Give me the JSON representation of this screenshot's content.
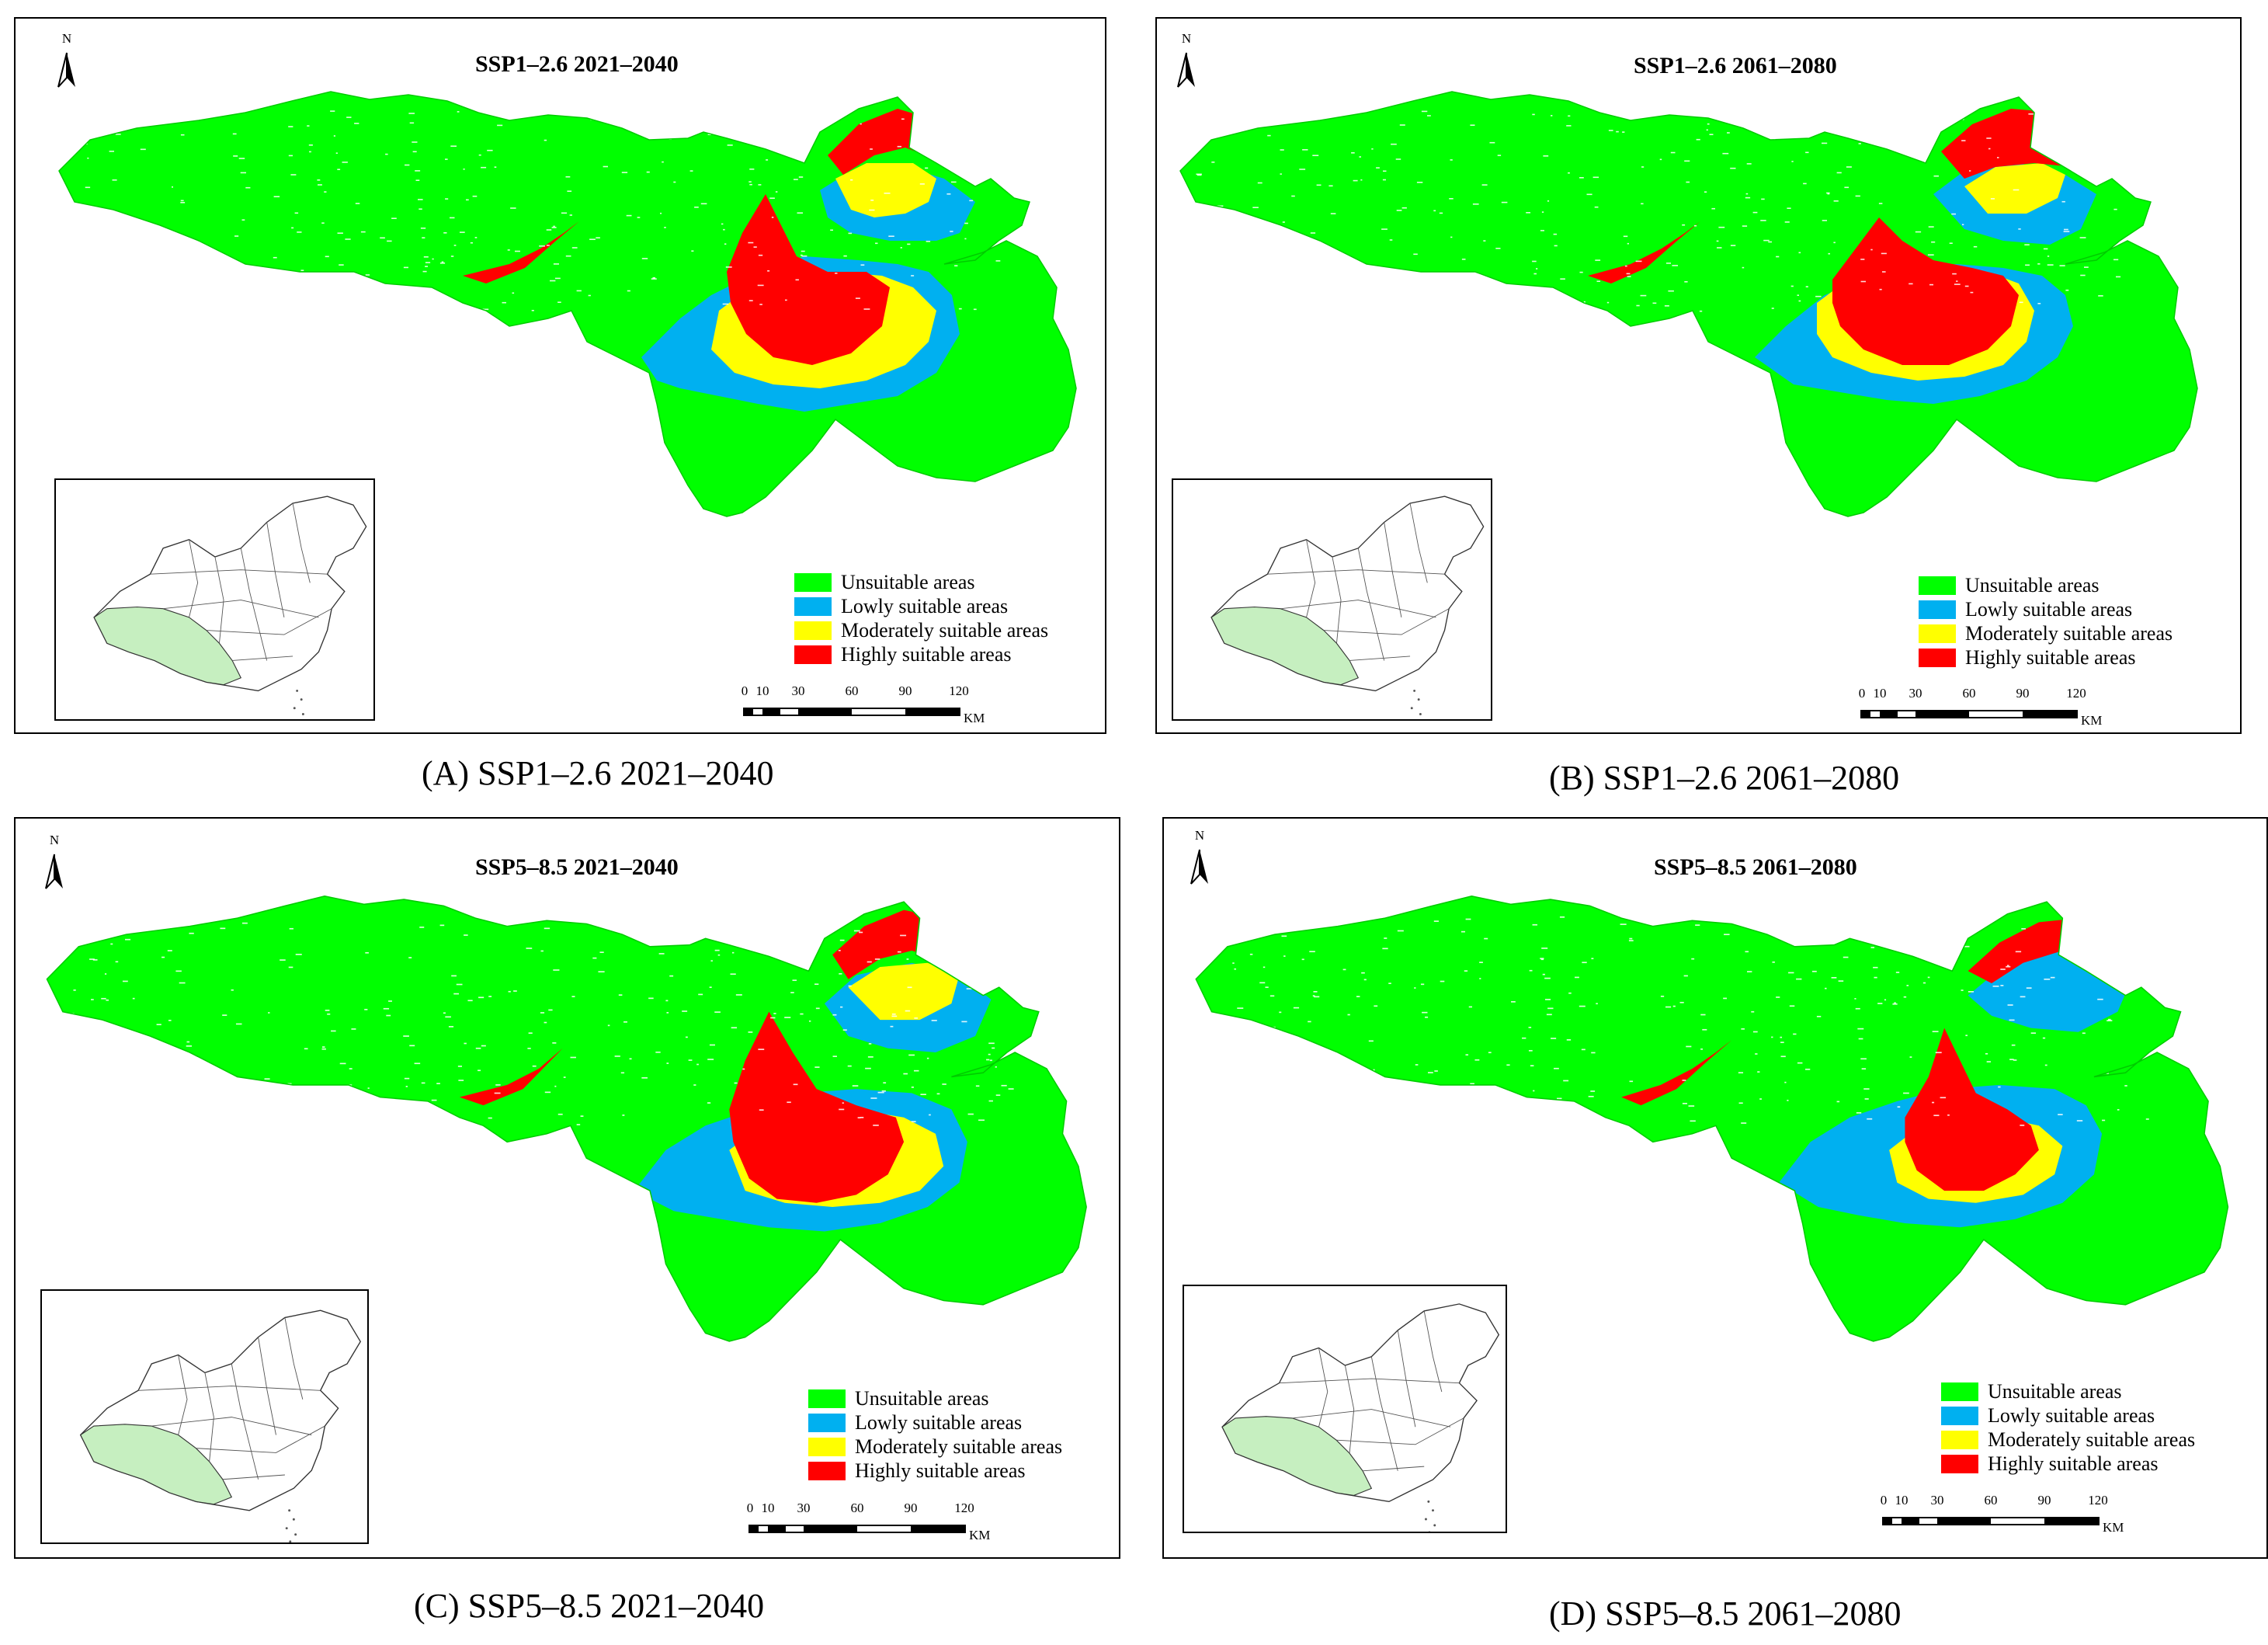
{
  "panels": [
    {
      "title": "SSP1–2.6 2021–2040",
      "caption": "(A) SSP1–2.6 2021–2040",
      "variant": "a"
    },
    {
      "title": "SSP1–2.6 2061–2080",
      "caption": "(B) SSP1–2.6 2061–2080",
      "variant": "b"
    },
    {
      "title": "SSP5–8.5 2021–2040",
      "caption": "(C) SSP5–8.5 2021–2040",
      "variant": "c"
    },
    {
      "title": "SSP5–8.5 2061–2080",
      "caption": "(D) SSP5–8.5 2061–2080",
      "variant": "d"
    }
  ],
  "north_label": "N",
  "legend": [
    {
      "label": "Unsuitable areas",
      "color": "#00ff00"
    },
    {
      "label": "Lowly suitable areas",
      "color": "#00b0f0"
    },
    {
      "label": "Moderately suitable areas",
      "color": "#ffff00"
    },
    {
      "label": "Highly suitable areas",
      "color": "#ff0000"
    }
  ],
  "scale": {
    "ticks": [
      "0",
      "10",
      "30",
      "60",
      "90",
      "120"
    ],
    "unit": "KM"
  },
  "inset_highlight_color": "#c6efc0"
}
